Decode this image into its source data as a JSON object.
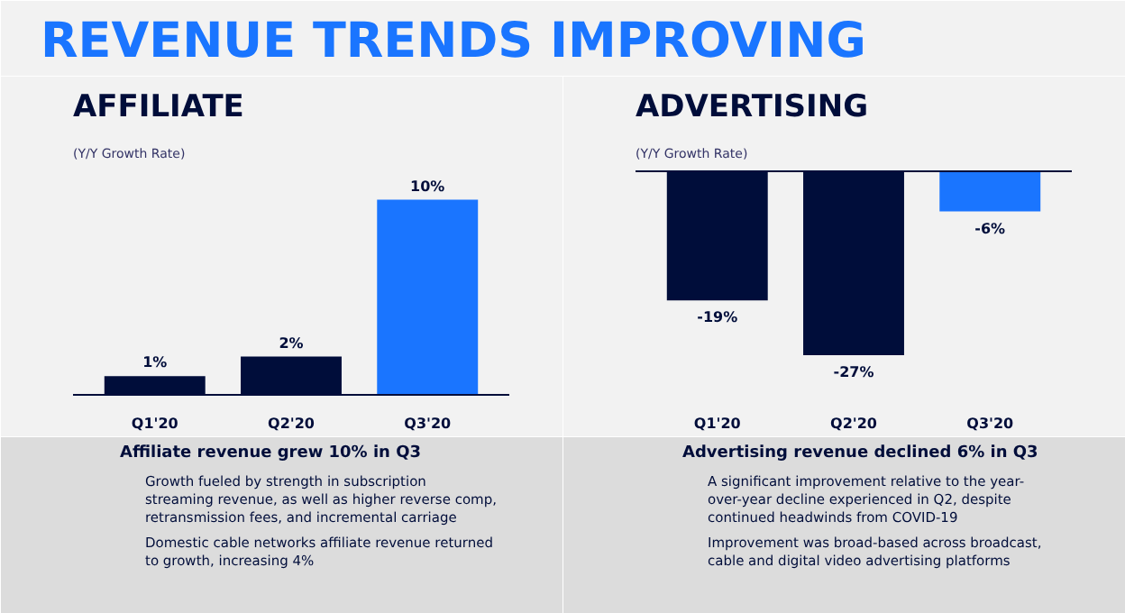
{
  "chart_data": [
    {
      "type": "other",
      "title": "REVENUE TRENDS IMPROVING"
    },
    {
      "type": "bar",
      "title": "AFFILIATE",
      "subtitle": "(Y/Y Growth Rate)",
      "categories": [
        "Q1'20",
        "Q2'20",
        "Q3'20"
      ],
      "values": [
        1,
        2,
        10
      ],
      "colors": [
        "#000d3a",
        "#000d3a",
        "#1a75ff"
      ],
      "value_labels": [
        "1%",
        "2%",
        "10%"
      ],
      "annotations": [
        "Affiliate revenue grew 10% in Q3",
        "Growth fueled by strength in subscription streaming revenue, as well as higher reverse comp, retransmission fees, and incremental carriage",
        "Domestic cable networks affiliate revenue returned to growth, increasing 4%"
      ]
    },
    {
      "type": "bar",
      "title": "ADVERTISING",
      "subtitle": "(Y/Y Growth Rate)",
      "categories": [
        "Q1'20",
        "Q2'20",
        "Q3'20"
      ],
      "values": [
        -19,
        -27,
        -6
      ],
      "colors": [
        "#000d3a",
        "#000d3a",
        "#1a75ff"
      ],
      "value_labels": [
        "-19%",
        "-27%",
        "-6%"
      ],
      "annotations": [
        "Advertising revenue declined 6% in Q3",
        "A significant improvement relative to the year-over-year decline experienced in Q2, despite continued headwinds from COVID-19",
        "Improvement was broad-based across broadcast, cable and digital video advertising platforms"
      ]
    }
  ]
}
